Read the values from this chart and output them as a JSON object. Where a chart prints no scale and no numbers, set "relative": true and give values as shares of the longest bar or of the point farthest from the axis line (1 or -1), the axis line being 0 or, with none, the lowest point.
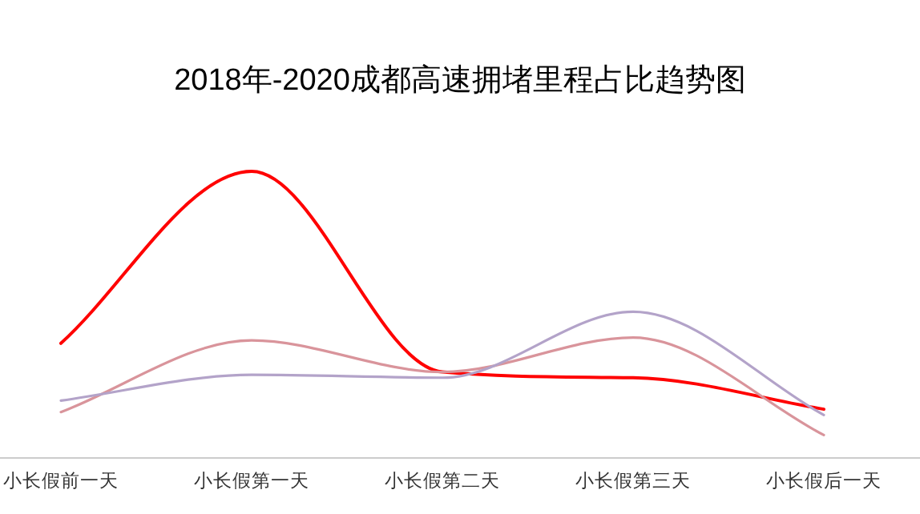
{
  "chart_data": {
    "type": "line",
    "title": "2018年-2020成都高速拥堵里程占比趋势图",
    "relative": true,
    "categories": [
      "小长假前一天",
      "小长假第一天",
      "小长假第二天",
      "小长假第三天",
      "小长假后一天"
    ],
    "series": [
      {
        "color": "#ff0000",
        "values": [
          0.4,
          1,
          0.3,
          0.28,
          0.17
        ]
      },
      {
        "color": "#d9949b",
        "values": [
          0.16,
          0.41,
          0.3,
          0.42,
          0.08
        ]
      },
      {
        "color": "#b3a3c9",
        "values": [
          0.2,
          0.29,
          0.28,
          0.51,
          0.15
        ]
      }
    ]
  }
}
